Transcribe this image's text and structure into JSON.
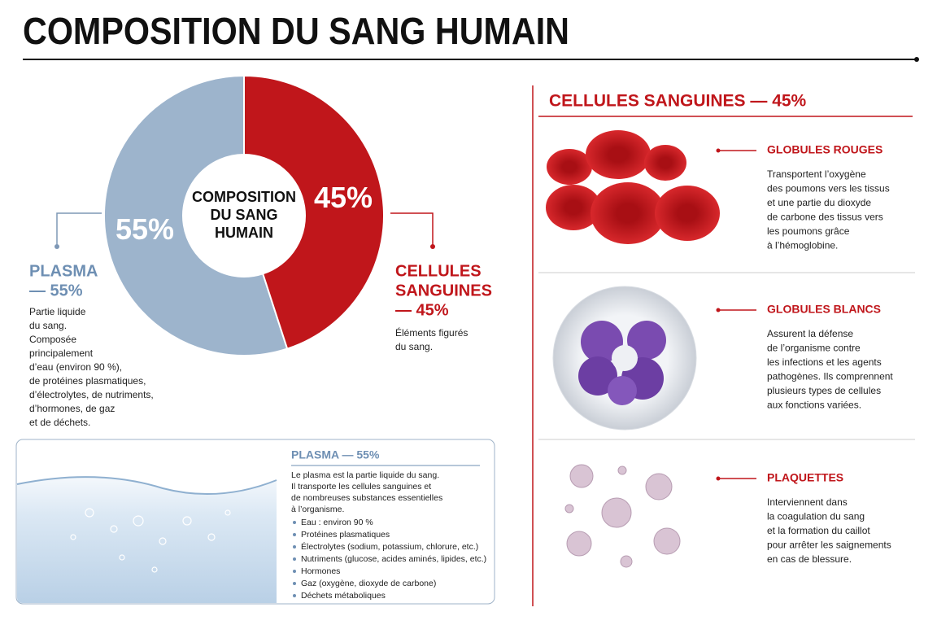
{
  "header": {
    "title": "COMPOSITION DU SANG HUMAIN"
  },
  "chart_data": {
    "type": "pie",
    "donut": true,
    "center_label": [
      "COMPOSITION",
      "DU SANG",
      "HUMAIN"
    ],
    "series": [
      {
        "name": "PLASMA",
        "color": "#9db4cc",
        "values": [
          55
        ],
        "value_labels": [
          "55%"
        ]
      },
      {
        "name": "CELLULES SANGUINES",
        "color": "#c0161b",
        "values": [
          45
        ],
        "value_labels": [
          "45%"
        ]
      }
    ],
    "callouts": [
      {
        "title": [
          "PLASMA",
          "— 55%"
        ],
        "text": [
          "Partie liquide",
          "du sang.",
          "Composée",
          "principalement",
          "d’eau (environ 90 %),",
          "de protéines plasmatiques,",
          "d’électrolytes, de nutriments,",
          "d’hormones, de gaz",
          "et de déchets."
        ]
      },
      {
        "title": [
          "CELLULES",
          "SANGUINES",
          "— 45%"
        ],
        "text": [
          "Éléments figurés",
          "du sang."
        ]
      }
    ]
  },
  "plasma_box": {
    "title": "PLASMA — 55%",
    "intro": [
      "Le plasma est la partie liquide du sang.",
      "Il transporte les cellules sanguines et",
      "de nombreuses substances essentielles",
      "à l’organisme."
    ],
    "bullets": [
      "Eau : environ 90 %",
      "Protéines plasmatiques",
      "Électrolytes (sodium, potassium, chlorure, etc.)",
      "Nutriments (glucose, acides aminés, lipides, etc.)",
      "Hormones",
      "Gaz (oxygène, dioxyde de carbone)",
      "Déchets métaboliques"
    ]
  },
  "cells_panel": {
    "title": "CELLULES SANGUINES — 45%",
    "items": [
      {
        "title": "GLOBULES ROUGES",
        "text": [
          "Transportent l’oxygène",
          "des poumons vers les tissus",
          "et une partie du dioxyde",
          "de carbone des tissus vers",
          "les poumons grâce",
          "à l’hémoglobine."
        ]
      },
      {
        "title": "GLOBULES BLANCS",
        "text": [
          "Assurent la défense",
          "de l’organisme contre",
          "les infections et les agents",
          "pathogènes. Ils comprennent",
          "plusieurs types de cellules",
          "aux fonctions variées."
        ]
      },
      {
        "title": "PLAQUETTES",
        "text": [
          "Interviennent dans",
          "la coagulation du sang",
          "et la formation du caillot",
          "pour arrêter les saignements",
          "en cas de blessure."
        ]
      }
    ]
  }
}
